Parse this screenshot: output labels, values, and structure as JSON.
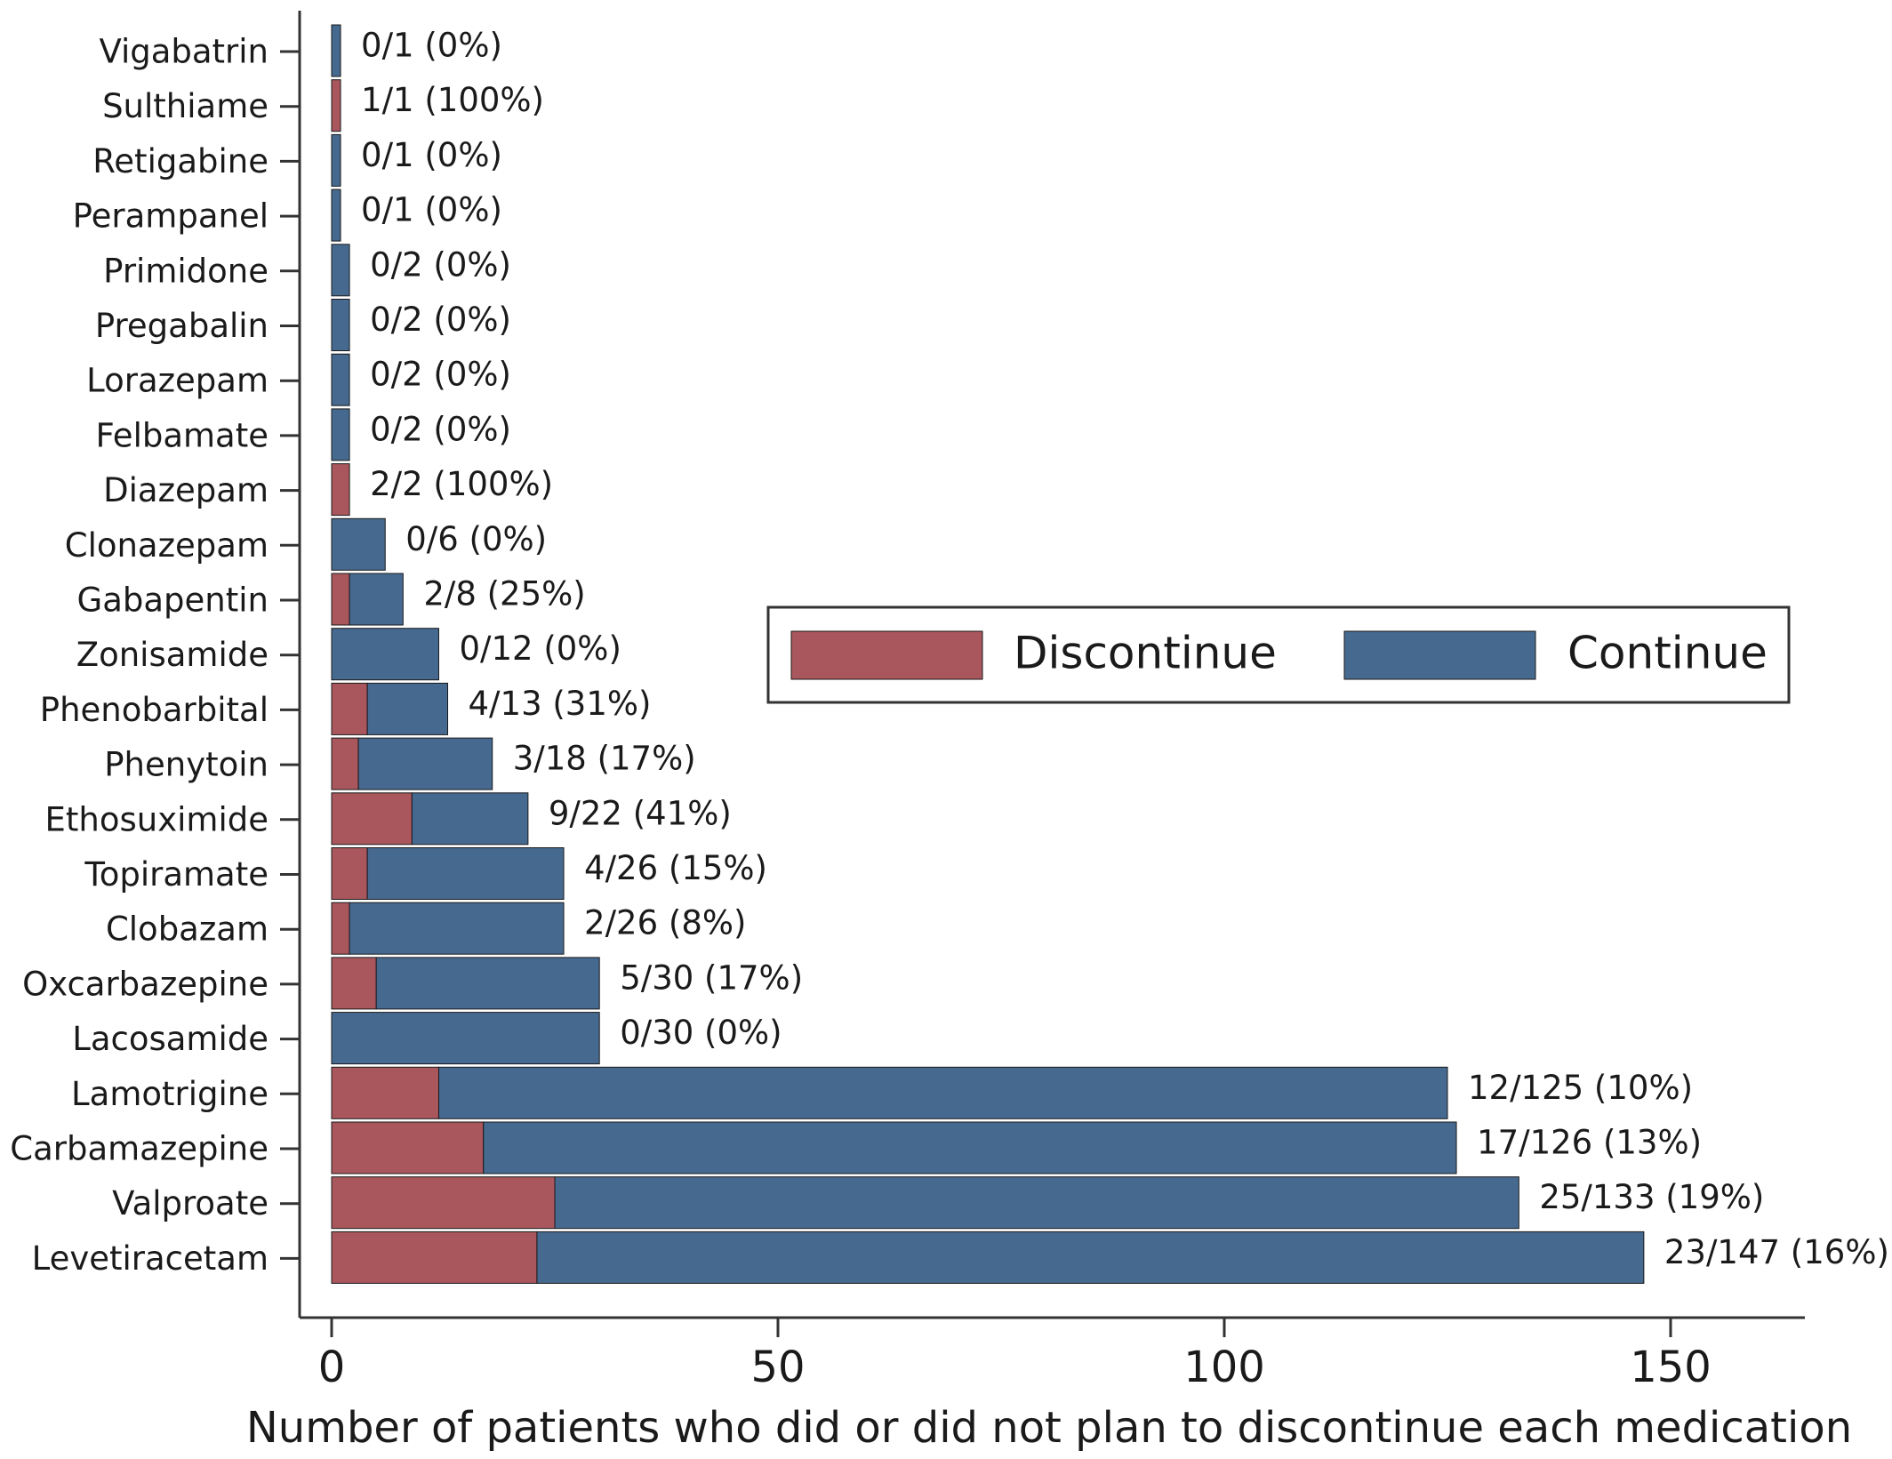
{
  "chart_data": {
    "type": "bar",
    "orientation": "horizontal",
    "stacked": true,
    "xlabel": "Number of patients who did or did not plan to discontinue each medication",
    "xlim": [
      -4,
      164
    ],
    "xticks": [
      0,
      50,
      100,
      150
    ],
    "legend_position": "right",
    "categories": [
      "Vigabatrin",
      "Sulthiame",
      "Retigabine",
      "Perampanel",
      "Primidone",
      "Pregabalin",
      "Lorazepam",
      "Felbamate",
      "Diazepam",
      "Clonazepam",
      "Gabapentin",
      "Zonisamide",
      "Phenobarbital",
      "Phenytoin",
      "Ethosuximide",
      "Topiramate",
      "Clobazam",
      "Oxcarbazepine",
      "Lacosamide",
      "Lamotrigine",
      "Carbamazepine",
      "Valproate",
      "Levetiracetam"
    ],
    "series": [
      {
        "name": "Discontinue",
        "color": "#a9575d",
        "values": [
          0,
          1,
          0,
          0,
          0,
          0,
          0,
          0,
          2,
          0,
          2,
          0,
          4,
          3,
          9,
          4,
          2,
          5,
          0,
          12,
          17,
          25,
          23
        ]
      },
      {
        "name": "Continue",
        "color": "#466990",
        "values": [
          1,
          0,
          1,
          1,
          2,
          2,
          2,
          2,
          0,
          6,
          6,
          12,
          9,
          15,
          13,
          22,
          24,
          25,
          30,
          113,
          109,
          108,
          124
        ]
      }
    ],
    "bar_labels": [
      "0/1 (0%)",
      "1/1 (100%)",
      "0/1 (0%)",
      "0/1 (0%)",
      "0/2 (0%)",
      "0/2 (0%)",
      "0/2 (0%)",
      "0/2 (0%)",
      "2/2 (100%)",
      "0/6 (0%)",
      "2/8 (25%)",
      "0/12 (0%)",
      "4/13 (31%)",
      "3/18 (17%)",
      "9/22 (41%)",
      "4/26 (15%)",
      "2/26 (8%)",
      "5/30 (17%)",
      "0/30 (0%)",
      "12/125 (10%)",
      "17/126 (13%)",
      "25/133 (19%)",
      "23/147 (16%)"
    ]
  }
}
